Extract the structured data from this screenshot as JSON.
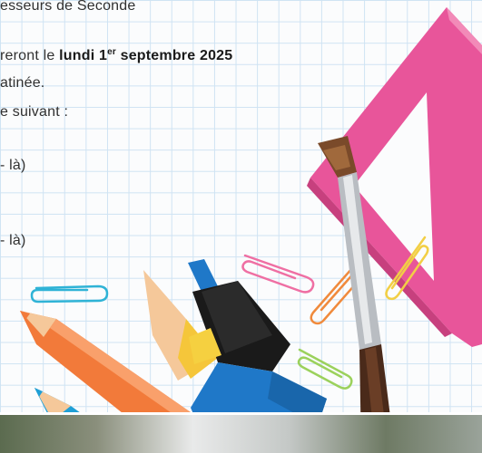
{
  "document": {
    "line1": "esseurs de Seconde",
    "line2_pre": "reront le ",
    "line2_bold_a": "lundi 1",
    "line2_sup": "er",
    "line2_bold_b": " septembre 2025",
    "line3": "atinée.",
    "line4": "e suivant :",
    "line5": "- là)",
    "line6": "- là)"
  },
  "colors": {
    "grid": "#cfe3f3",
    "set_square": "#e8559a",
    "highlighter_blue": "#1f78c8",
    "pencil_orange": "#f27a3a",
    "brush_handle": "#4a2a1a"
  }
}
